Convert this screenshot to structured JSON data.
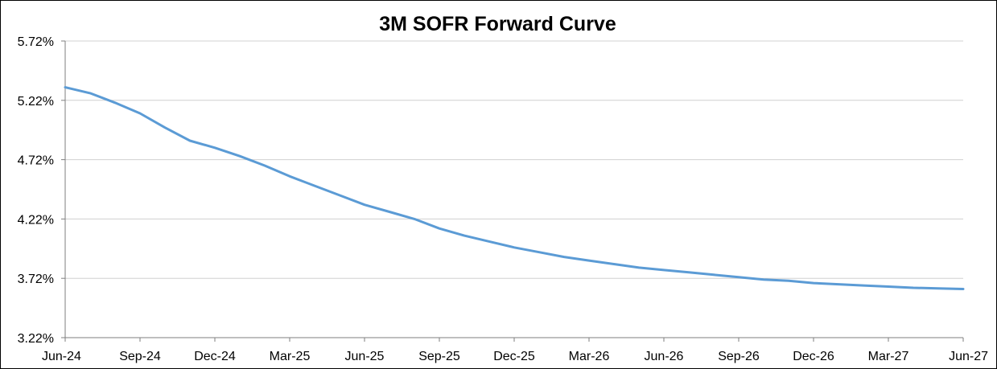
{
  "chart_data": {
    "type": "line",
    "title": "3M SOFR Forward Curve",
    "xlabel": "",
    "ylabel": "",
    "x_tick_labels": [
      "Jun-24",
      "Sep-24",
      "Dec-24",
      "Mar-25",
      "Jun-25",
      "Sep-25",
      "Dec-25",
      "Mar-26",
      "Jun-26",
      "Sep-26",
      "Dec-26",
      "Mar-27",
      "Jun-27"
    ],
    "y_tick_labels": [
      "3.22%",
      "3.72%",
      "4.22%",
      "4.72%",
      "5.22%",
      "5.72%"
    ],
    "ylim": [
      3.22,
      5.72
    ],
    "x_range": [
      "Jun-24",
      "Jun-27"
    ],
    "grid": "horizontal",
    "legend": "none",
    "series": [
      {
        "color": "#5b9bd5",
        "x": [
          "Jun-24",
          "Jul-24",
          "Aug-24",
          "Sep-24",
          "Oct-24",
          "Nov-24",
          "Dec-24",
          "Jan-25",
          "Feb-25",
          "Mar-25",
          "Apr-25",
          "May-25",
          "Jun-25",
          "Jul-25",
          "Aug-25",
          "Sep-25",
          "Oct-25",
          "Nov-25",
          "Dec-25",
          "Jan-26",
          "Feb-26",
          "Mar-26",
          "Apr-26",
          "May-26",
          "Jun-26",
          "Jul-26",
          "Aug-26",
          "Sep-26",
          "Oct-26",
          "Nov-26",
          "Dec-26",
          "Jan-27",
          "Feb-27",
          "Mar-27",
          "Apr-27",
          "May-27",
          "Jun-27"
        ],
        "values": [
          5.33,
          5.28,
          5.2,
          5.11,
          4.99,
          4.88,
          4.82,
          4.75,
          4.67,
          4.58,
          4.5,
          4.42,
          4.34,
          4.28,
          4.22,
          4.14,
          4.08,
          4.03,
          3.98,
          3.94,
          3.9,
          3.87,
          3.84,
          3.81,
          3.79,
          3.77,
          3.75,
          3.73,
          3.71,
          3.7,
          3.68,
          3.67,
          3.66,
          3.65,
          3.64,
          3.635,
          3.63
        ]
      }
    ]
  }
}
